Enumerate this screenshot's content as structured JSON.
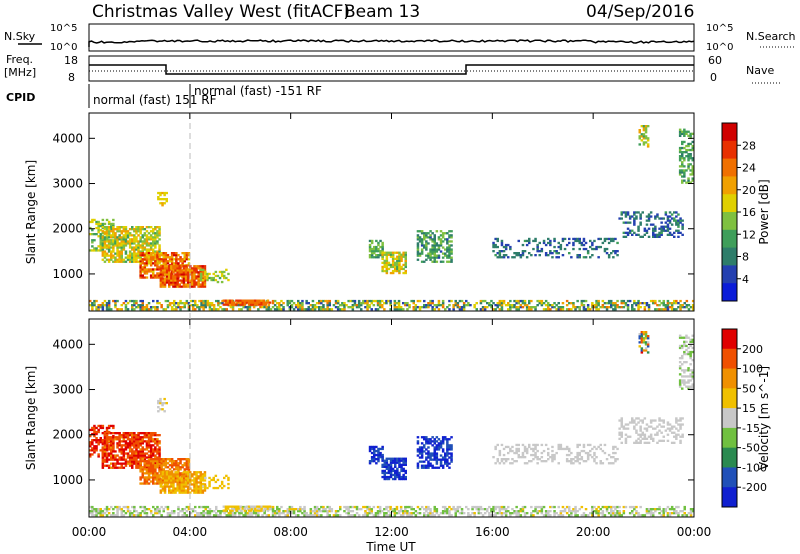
{
  "header": {
    "title": "Christmas Valley West (fitACF)",
    "beam": "Beam 13",
    "date": "04/Sep/2016"
  },
  "panels": {
    "nsky_label": "N.Sky",
    "nsearch_label": "N.Search",
    "nsky_ticks": [
      "10^5",
      "10^0"
    ],
    "nsearch_ticks": [
      "10^5",
      "10^0"
    ],
    "freq_label": "Freq.",
    "freq_unit": "[MHz]",
    "freq_ticks": [
      "18",
      "8"
    ],
    "nave_label": "Nave",
    "nave_ticks": [
      "60",
      "0"
    ],
    "cpid_label": "CPID",
    "cpid_segments": [
      "normal (fast) 151 RF",
      "normal (fast) -151 RF"
    ]
  },
  "chart_data": [
    {
      "type": "heatmap",
      "name": "power",
      "ylabel": "Slant Range [km]",
      "yticks": [
        "4000",
        "3000",
        "2000",
        "1000"
      ],
      "colorbar_label": "Power [dB]",
      "colorbar_ticks": [
        "28",
        "24",
        "20",
        "16",
        "12",
        "8",
        "4"
      ],
      "colorscale": [
        "#0a1cd8",
        "#2440b0",
        "#2e7d6a",
        "#3f9e5a",
        "#7fc040",
        "#e0d000",
        "#f0a000",
        "#f07000",
        "#e83000",
        "#d00000"
      ],
      "ylim": [
        180,
        4560
      ]
    },
    {
      "type": "heatmap",
      "name": "velocity",
      "ylabel": "Slant Range [km]",
      "yticks": [
        "4000",
        "3000",
        "2000",
        "1000"
      ],
      "colorbar_label": "Velocity [m s^-1]",
      "colorbar_ticks": [
        "200",
        "100",
        "50",
        "15",
        "-15",
        "-50",
        "-100",
        "-200"
      ],
      "colorscale": [
        "#1020d0",
        "#2050b8",
        "#2a8a50",
        "#70c040",
        "#c8c8c8",
        "#f0c000",
        "#f09000",
        "#f05000",
        "#e00000"
      ],
      "ylim": [
        180,
        4560
      ]
    }
  ],
  "xaxis": {
    "label": "Time UT",
    "ticks": [
      "00:00",
      "04:00",
      "08:00",
      "12:00",
      "16:00",
      "20:00",
      "00:00"
    ]
  }
}
